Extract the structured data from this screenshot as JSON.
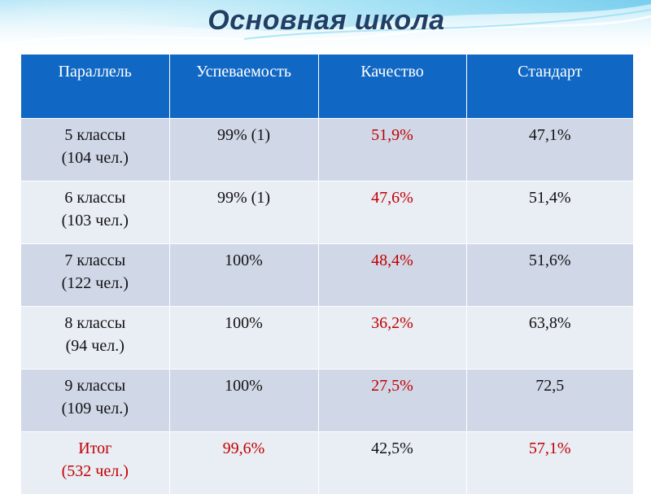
{
  "title": "Основная школа",
  "headers": [
    "Параллель",
    "Успеваемость",
    "Качество",
    "Стандарт"
  ],
  "rows": [
    {
      "parallel_line1": "5 классы",
      "parallel_line2": "(104 чел.)",
      "progress": "99% (1)",
      "quality": "51,9%",
      "standard": "47,1%"
    },
    {
      "parallel_line1": "6 классы",
      "parallel_line2": "(103 чел.)",
      "progress": "99% (1)",
      "quality": "47,6%",
      "standard": "51,4%"
    },
    {
      "parallel_line1": "7 классы",
      "parallel_line2": "(122 чел.)",
      "progress": "100%",
      "quality": "48,4%",
      "standard": "51,6%"
    },
    {
      "parallel_line1": "8 классы",
      "parallel_line2": "(94 чел.)",
      "progress": "100%",
      "quality": "36,2%",
      "standard": "63,8%"
    },
    {
      "parallel_line1": "9 классы",
      "parallel_line2": "(109 чел.)",
      "progress": "100%",
      "quality": "27,5%",
      "standard": "72,5"
    },
    {
      "parallel_line1": "Итог",
      "parallel_line2": "(532 чел.)",
      "progress": "99,6%",
      "quality": "42,5%",
      "standard": "57,1%"
    }
  ],
  "colors": {
    "header_bg": "#1168c4",
    "row_odd": "#d0d8e8",
    "row_even": "#e9edf4",
    "highlight_red": "#c00000",
    "title_color": "#1f3f66"
  }
}
